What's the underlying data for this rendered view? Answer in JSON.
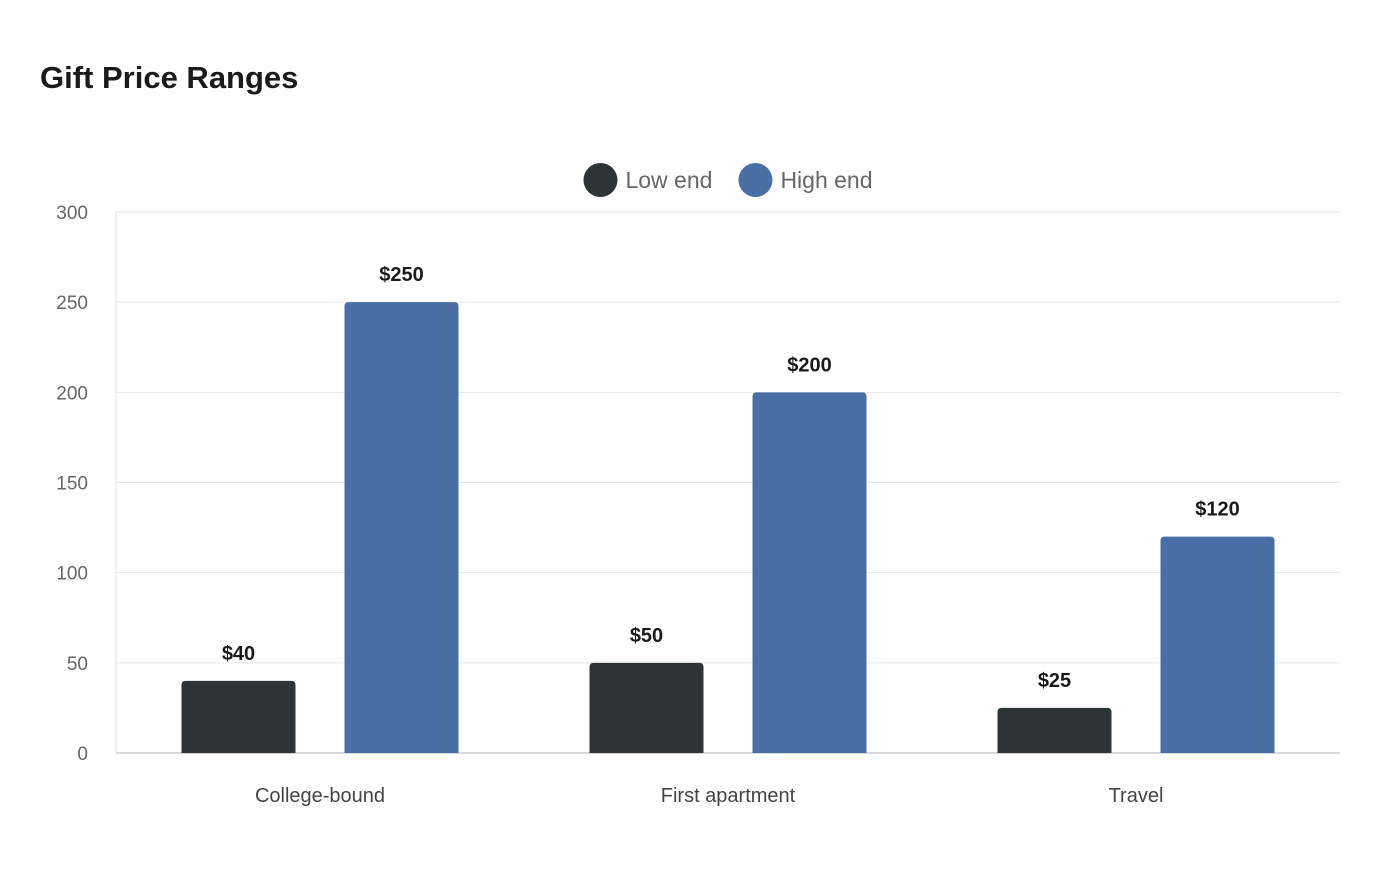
{
  "chart_data": {
    "type": "bar",
    "title": "Gift Price Ranges",
    "categories": [
      "College-bound",
      "First apartment",
      "Travel"
    ],
    "series": [
      {
        "name": "Low end",
        "values": [
          40,
          50,
          25
        ],
        "labels": [
          "$40",
          "$50",
          "$25"
        ],
        "color": "#2d3436"
      },
      {
        "name": "High end",
        "values": [
          250,
          200,
          120
        ],
        "labels": [
          "$250",
          "$200",
          "$120"
        ],
        "color": "#4a6fa5"
      }
    ],
    "ylim": [
      0,
      300
    ],
    "yticks": [
      0,
      50,
      100,
      150,
      200,
      250,
      300
    ],
    "grid": true,
    "legend": "top-center"
  }
}
